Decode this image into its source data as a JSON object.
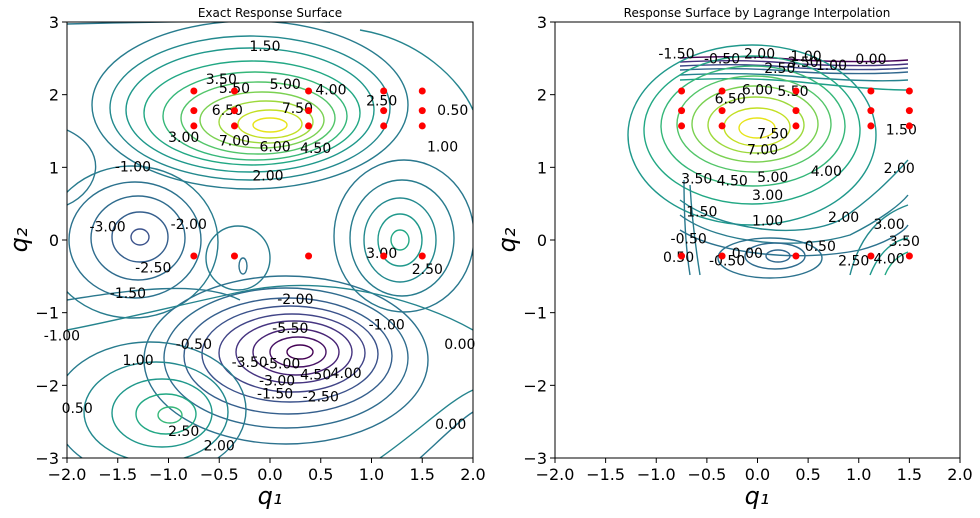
{
  "chart_data": [
    {
      "type": "contour",
      "title": "Exact Response Surface",
      "xlabel": "q₁",
      "ylabel": "q₂",
      "xlim": [
        -2.0,
        2.0
      ],
      "ylim": [
        -3,
        3
      ],
      "x_ticks": [
        "−2.0",
        "−1.5",
        "−1.0",
        "−0.5",
        "0.0",
        "0.5",
        "1.0",
        "1.5",
        "2.0"
      ],
      "y_ticks": [
        "−3",
        "−2",
        "−1",
        "0",
        "1",
        "2",
        "3"
      ],
      "sample_points": [
        [
          -0.75,
          2.05
        ],
        [
          -0.35,
          2.05
        ],
        [
          0.38,
          2.05
        ],
        [
          1.12,
          2.05
        ],
        [
          1.5,
          2.05
        ],
        [
          -0.75,
          1.78
        ],
        [
          -0.35,
          1.78
        ],
        [
          0.38,
          1.78
        ],
        [
          1.12,
          1.78
        ],
        [
          1.5,
          1.78
        ],
        [
          -0.75,
          1.57
        ],
        [
          -0.35,
          1.57
        ],
        [
          0.38,
          1.57
        ],
        [
          1.12,
          1.57
        ],
        [
          1.5,
          1.57
        ],
        [
          -0.75,
          -0.22
        ],
        [
          -0.35,
          -0.22
        ],
        [
          0.38,
          -0.22
        ],
        [
          1.12,
          -0.22
        ],
        [
          1.5,
          -0.22
        ]
      ],
      "contour_labels": [
        {
          "text": "1.50",
          "x": -0.05,
          "y": 2.6
        },
        {
          "text": "3.50",
          "x": -0.48,
          "y": 2.15
        },
        {
          "text": "5.00",
          "x": 0.15,
          "y": 2.08
        },
        {
          "text": "5.50",
          "x": -0.35,
          "y": 2.02
        },
        {
          "text": "4.00",
          "x": 0.6,
          "y": 2.0
        },
        {
          "text": "6.50",
          "x": -0.42,
          "y": 1.72
        },
        {
          "text": "7.50",
          "x": 0.27,
          "y": 1.75
        },
        {
          "text": "3.00",
          "x": -0.85,
          "y": 1.35
        },
        {
          "text": "7.00",
          "x": -0.35,
          "y": 1.3
        },
        {
          "text": "6.00",
          "x": 0.05,
          "y": 1.22
        },
        {
          "text": "4.50",
          "x": 0.45,
          "y": 1.2
        },
        {
          "text": "2.50",
          "x": 1.1,
          "y": 1.85
        },
        {
          "text": "0.50",
          "x": 1.8,
          "y": 1.72
        },
        {
          "text": "1.00",
          "x": 1.7,
          "y": 1.22
        },
        {
          "text": "-1.00",
          "x": -1.35,
          "y": 0.94
        },
        {
          "text": "2.00",
          "x": -0.02,
          "y": 0.82
        },
        {
          "text": "-3.00",
          "x": -1.6,
          "y": 0.12
        },
        {
          "text": "-2.00",
          "x": -0.8,
          "y": 0.15
        },
        {
          "text": "-2.50",
          "x": -1.15,
          "y": -0.45
        },
        {
          "text": "-1.50",
          "x": -1.4,
          "y": -0.8
        },
        {
          "text": "3.00",
          "x": 1.1,
          "y": -0.25
        },
        {
          "text": "2.50",
          "x": 1.55,
          "y": -0.47
        },
        {
          "text": "-2.00",
          "x": 0.25,
          "y": -0.88
        },
        {
          "text": "-5.50",
          "x": 0.2,
          "y": -1.28
        },
        {
          "text": "-1.00",
          "x": 1.15,
          "y": -1.23
        },
        {
          "text": "-0.50",
          "x": -0.75,
          "y": -1.5
        },
        {
          "text": "0.00",
          "x": 1.87,
          "y": -1.5
        },
        {
          "text": "-3.50",
          "x": -0.2,
          "y": -1.75
        },
        {
          "text": "-5.00",
          "x": 0.12,
          "y": -1.77
        },
        {
          "text": "1.00",
          "x": -1.3,
          "y": -1.72
        },
        {
          "text": "4.50",
          "x": 0.45,
          "y": -1.92
        },
        {
          "text": "4.00",
          "x": 0.75,
          "y": -1.9
        },
        {
          "text": "-3.00",
          "x": 0.07,
          "y": -2.0
        },
        {
          "text": "-1.50",
          "x": 0.05,
          "y": -2.18
        },
        {
          "text": "-2.50",
          "x": 0.5,
          "y": -2.22
        },
        {
          "text": "0.50",
          "x": -1.9,
          "y": -2.38
        },
        {
          "text": "2.50",
          "x": -0.85,
          "y": -2.7
        },
        {
          "text": "2.00",
          "x": -0.5,
          "y": -2.9
        },
        {
          "text": "0.00",
          "x": 1.78,
          "y": -2.6
        },
        {
          "text": "-1.00",
          "x": -2.05,
          "y": -1.38
        }
      ]
    },
    {
      "type": "contour",
      "title": "Response Surface by Lagrange Interpolation",
      "xlabel": "q₁",
      "ylabel": "q₂",
      "xlim": [
        -2.0,
        2.0
      ],
      "ylim": [
        -3,
        3
      ],
      "x_ticks": [
        "−2.0",
        "−1.5",
        "−1.0",
        "−0.5",
        "0.0",
        "0.5",
        "1.0",
        "1.5",
        "2.0"
      ],
      "y_ticks": [
        "−3",
        "−2",
        "−1",
        "0",
        "1",
        "2",
        "3"
      ],
      "sample_points": [
        [
          -0.75,
          2.05
        ],
        [
          -0.35,
          2.05
        ],
        [
          0.38,
          2.05
        ],
        [
          1.12,
          2.05
        ],
        [
          1.5,
          2.05
        ],
        [
          -0.75,
          1.78
        ],
        [
          -0.35,
          1.78
        ],
        [
          0.38,
          1.78
        ],
        [
          1.12,
          1.78
        ],
        [
          1.5,
          1.78
        ],
        [
          -0.75,
          1.57
        ],
        [
          -0.35,
          1.57
        ],
        [
          0.38,
          1.57
        ],
        [
          1.12,
          1.57
        ],
        [
          1.5,
          1.57
        ],
        [
          -0.75,
          -0.22
        ],
        [
          -0.35,
          -0.22
        ],
        [
          0.38,
          -0.22
        ],
        [
          1.12,
          -0.22
        ],
        [
          1.5,
          -0.22
        ]
      ],
      "contour_labels": [
        {
          "text": "-1.50",
          "x": -0.8,
          "y": 2.5
        },
        {
          "text": "-0.50",
          "x": -0.35,
          "y": 2.43
        },
        {
          "text": "2.00",
          "x": 0.02,
          "y": 2.5
        },
        {
          "text": "1.00",
          "x": 0.48,
          "y": 2.46
        },
        {
          "text": "3.50",
          "x": 0.45,
          "y": 2.38
        },
        {
          "text": "1.00",
          "x": 0.73,
          "y": 2.34
        },
        {
          "text": "0.00",
          "x": 1.12,
          "y": 2.42
        },
        {
          "text": "2.50",
          "x": 0.22,
          "y": 2.3
        },
        {
          "text": "6.00",
          "x": 0.0,
          "y": 2.0
        },
        {
          "text": "5.50",
          "x": 0.35,
          "y": 1.98
        },
        {
          "text": "6.50",
          "x": -0.27,
          "y": 1.88
        },
        {
          "text": "1.50",
          "x": 1.42,
          "y": 1.45
        },
        {
          "text": "7.50",
          "x": 0.15,
          "y": 1.4
        },
        {
          "text": "7.00",
          "x": 0.05,
          "y": 1.18
        },
        {
          "text": "2.00",
          "x": 1.4,
          "y": 0.92
        },
        {
          "text": "3.50",
          "x": -0.6,
          "y": 0.78
        },
        {
          "text": "4.50",
          "x": -0.25,
          "y": 0.75
        },
        {
          "text": "5.00",
          "x": 0.15,
          "y": 0.8
        },
        {
          "text": "4.00",
          "x": 0.68,
          "y": 0.88
        },
        {
          "text": "3.00",
          "x": 0.1,
          "y": 0.55
        },
        {
          "text": "1.50",
          "x": -0.55,
          "y": 0.32
        },
        {
          "text": "1.00",
          "x": 0.1,
          "y": 0.2
        },
        {
          "text": "2.00",
          "x": 0.85,
          "y": 0.25
        },
        {
          "text": "3.00",
          "x": 1.3,
          "y": 0.15
        },
        {
          "text": "-0.50",
          "x": -0.68,
          "y": -0.05
        },
        {
          "text": "0.00",
          "x": -0.1,
          "y": -0.25
        },
        {
          "text": "0.50",
          "x": 0.62,
          "y": -0.15
        },
        {
          "text": "3.50",
          "x": 1.45,
          "y": -0.08
        },
        {
          "text": "-0.50",
          "x": -0.3,
          "y": -0.35
        },
        {
          "text": "2.50",
          "x": 0.95,
          "y": -0.35
        },
        {
          "text": "4.00",
          "x": 1.3,
          "y": -0.32
        },
        {
          "text": "0.50",
          "x": -0.78,
          "y": -0.3
        }
      ]
    }
  ],
  "colors": {
    "contour_low": "#440154",
    "contour_mid": "#21918c",
    "contour_high": "#fde725",
    "sample_point": "#ff0000",
    "axes": "#000000"
  }
}
